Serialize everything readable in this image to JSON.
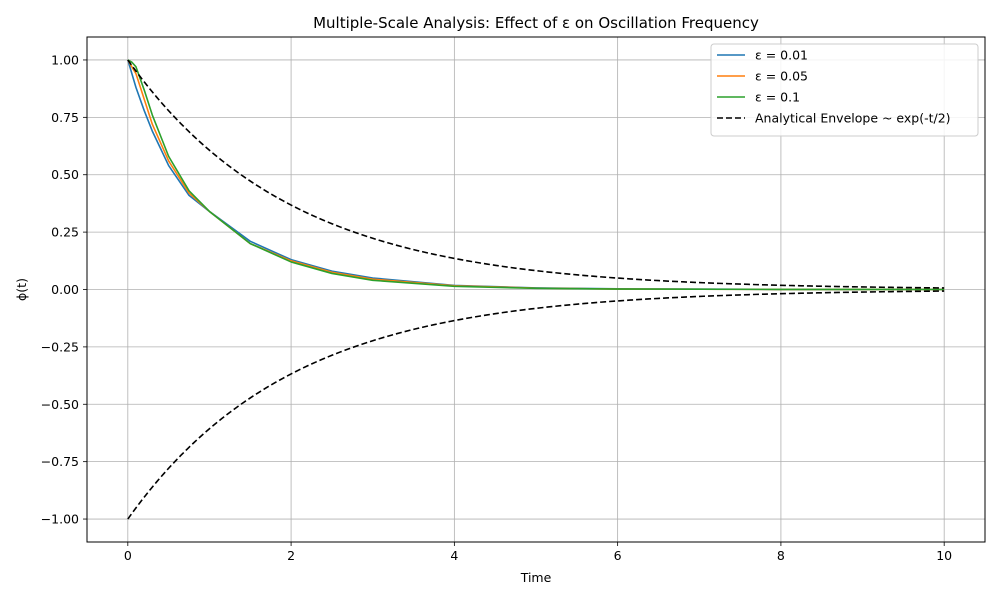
{
  "chart_data": {
    "type": "line",
    "title": "Multiple-Scale Analysis: Effect of ε on Oscillation Frequency",
    "xlabel": "Time",
    "ylabel": "ϕ(t)",
    "xlim": [
      -0.5,
      10.5
    ],
    "ylim": [
      -1.1,
      1.1
    ],
    "x_ticks": [
      0,
      2,
      4,
      6,
      8,
      10
    ],
    "x_tick_labels": [
      "0",
      "2",
      "4",
      "6",
      "8",
      "10"
    ],
    "y_ticks": [
      1.0,
      0.75,
      0.5,
      0.25,
      0.0,
      -0.25,
      -0.5,
      -0.75,
      -1.0
    ],
    "y_tick_labels": [
      "1.00",
      "0.75",
      "0.50",
      "0.25",
      "0.00",
      "−0.25",
      "−0.50",
      "−0.75",
      "−1.00"
    ],
    "grid": true,
    "legend_position": "top-right",
    "series": [
      {
        "name": "ε = 0.01",
        "color": "#1f77b4",
        "style": "solid",
        "x": [
          0,
          0.1,
          0.2,
          0.3,
          0.5,
          0.75,
          1.0,
          1.5,
          2.0,
          2.5,
          3.0,
          4.0,
          5.0,
          6.0,
          8.0,
          10.0
        ],
        "y": [
          1.0,
          0.88,
          0.78,
          0.69,
          0.54,
          0.41,
          0.34,
          0.21,
          0.13,
          0.08,
          0.05,
          0.018,
          0.007,
          0.003,
          0.0005,
          0.0
        ]
      },
      {
        "name": "ε = 0.05",
        "color": "#ff7f0e",
        "style": "solid",
        "x": [
          0,
          0.1,
          0.2,
          0.3,
          0.5,
          0.75,
          1.0,
          1.5,
          2.0,
          2.5,
          3.0,
          4.0,
          5.0,
          6.0,
          8.0,
          10.0
        ],
        "y": [
          1.0,
          0.94,
          0.83,
          0.72,
          0.56,
          0.42,
          0.34,
          0.2,
          0.125,
          0.075,
          0.045,
          0.016,
          0.006,
          0.002,
          0.0004,
          0.0
        ]
      },
      {
        "name": "ε = 0.1",
        "color": "#2ca02c",
        "style": "solid",
        "x": [
          0,
          0.05,
          0.1,
          0.2,
          0.3,
          0.5,
          0.75,
          1.0,
          1.5,
          2.0,
          2.5,
          3.0,
          4.0,
          5.0,
          6.0,
          8.0,
          10.0
        ],
        "y": [
          1.0,
          0.99,
          0.97,
          0.87,
          0.76,
          0.58,
          0.43,
          0.34,
          0.2,
          0.12,
          0.07,
          0.04,
          0.014,
          0.005,
          0.002,
          0.0003,
          0.0
        ]
      },
      {
        "name": "Analytical Envelope ~ exp(-t/2)",
        "color": "#000000",
        "style": "dashed",
        "function": "exp(-t/2)",
        "mirrored": true,
        "x_range": [
          0,
          10
        ]
      }
    ]
  }
}
